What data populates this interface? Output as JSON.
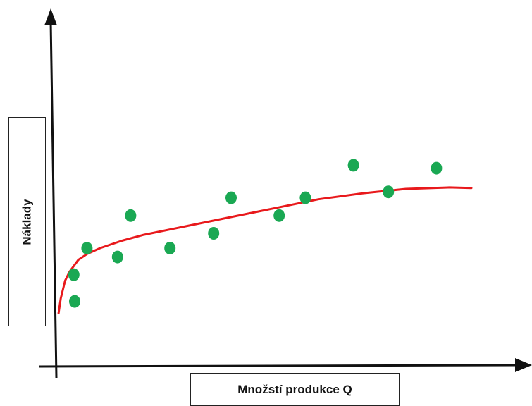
{
  "chart_data": {
    "type": "scatter",
    "xlabel": "Množstí produkce Q",
    "ylabel": "Náklady",
    "xlim": [
      0,
      100
    ],
    "ylim": [
      0,
      100
    ],
    "grid": false,
    "points_color": "#1aa853",
    "curve_color": "#e8191c",
    "axis_color": "#111111",
    "points": [
      {
        "x": 4,
        "y": 31
      },
      {
        "x": 4.2,
        "y": 22
      },
      {
        "x": 7,
        "y": 40
      },
      {
        "x": 14,
        "y": 37
      },
      {
        "x": 17,
        "y": 51
      },
      {
        "x": 26,
        "y": 40
      },
      {
        "x": 36,
        "y": 45
      },
      {
        "x": 40,
        "y": 57
      },
      {
        "x": 51,
        "y": 51
      },
      {
        "x": 57,
        "y": 57
      },
      {
        "x": 68,
        "y": 68
      },
      {
        "x": 76,
        "y": 59
      },
      {
        "x": 87,
        "y": 67
      }
    ],
    "trend": {
      "x": [
        0.5,
        1,
        2,
        3,
        5,
        7,
        10,
        15,
        20,
        30,
        40,
        50,
        60,
        70,
        80,
        90,
        95
      ],
      "y": [
        18,
        23,
        29,
        32,
        36,
        38,
        40,
        42.5,
        44.5,
        47.5,
        50.5,
        53.5,
        56.5,
        58.5,
        60,
        60.5,
        60.3
      ]
    }
  }
}
